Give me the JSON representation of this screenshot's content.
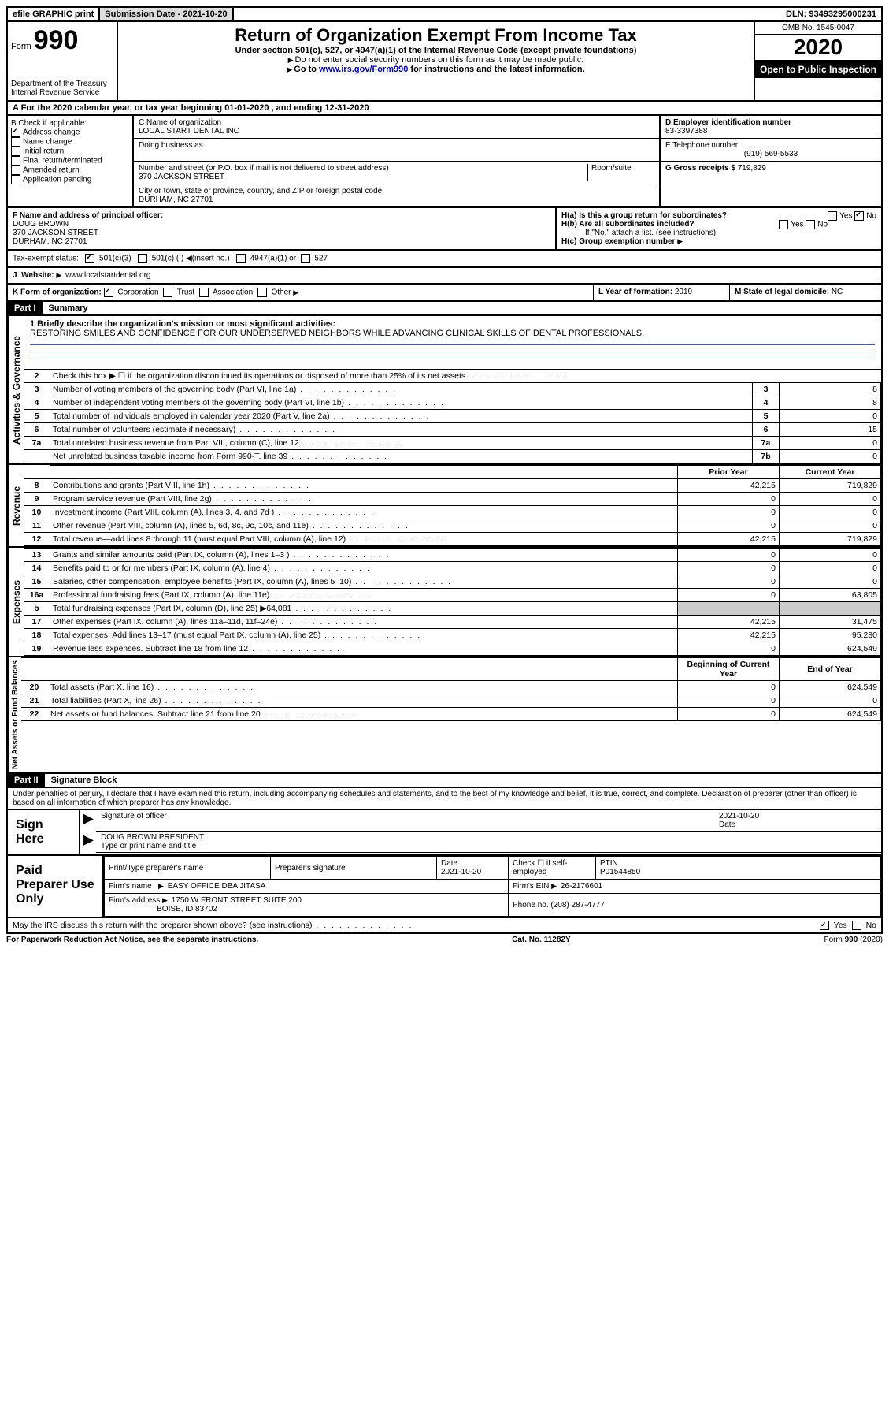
{
  "topbar": {
    "efile": "efile GRAPHIC print",
    "subdate_label": "Submission Date - ",
    "subdate": "2021-10-20",
    "dln_label": "DLN: ",
    "dln": "93493295000231"
  },
  "header": {
    "form_word": "Form",
    "form_num": "990",
    "dept": "Department of the Treasury\nInternal Revenue Service",
    "title": "Return of Organization Exempt From Income Tax",
    "sub1": "Under section 501(c), 527, or 4947(a)(1) of the Internal Revenue Code (except private foundations)",
    "sub2": "Do not enter social security numbers on this form as it may be made public.",
    "sub3_pre": "Go to ",
    "sub3_link": "www.irs.gov/Form990",
    "sub3_post": " for instructions and the latest information.",
    "omb": "OMB No. 1545-0047",
    "year": "2020",
    "open": "Open to Public Inspection"
  },
  "sectionA": "A  For the 2020 calendar year, or tax year beginning 01-01-2020    , and ending 12-31-2020",
  "boxB": {
    "label": "B Check if applicable:",
    "items": [
      "Address change",
      "Name change",
      "Initial return",
      "Final return/terminated",
      "Amended return",
      "Application pending"
    ],
    "checked": [
      true,
      false,
      false,
      false,
      false,
      false
    ]
  },
  "boxC": {
    "name_label": "C Name of organization",
    "name": "LOCAL START DENTAL INC",
    "dba_label": "Doing business as",
    "addr_label": "Number and street (or P.O. box if mail is not delivered to street address)",
    "room_label": "Room/suite",
    "addr": "370 JACKSON STREET",
    "city_label": "City or town, state or province, country, and ZIP or foreign postal code",
    "city": "DURHAM, NC  27701"
  },
  "boxD": {
    "label": "D Employer identification number",
    "value": "83-3397388"
  },
  "boxE": {
    "label": "E Telephone number",
    "value": "(919) 569-5533"
  },
  "boxG": {
    "label": "G Gross receipts $ ",
    "value": "719,829"
  },
  "boxF": {
    "label": "F  Name and address of principal officer:",
    "name": "DOUG BROWN",
    "addr1": "370 JACKSON STREET",
    "addr2": "DURHAM, NC  27701"
  },
  "boxH": {
    "a_label": "H(a)  Is this a group return for subordinates?",
    "a_yes": "Yes",
    "a_no": "No",
    "b_label": "H(b)  Are all subordinates included?",
    "b_yes": "Yes",
    "b_no": "No",
    "note": "If \"No,\" attach a list. (see instructions)",
    "c_label": "H(c)  Group exemption number"
  },
  "taxexempt": {
    "label": "Tax-exempt status:",
    "o1": "501(c)(3)",
    "o2": "501(c) (  )",
    "o2_note": "(insert no.)",
    "o3": "4947(a)(1) or",
    "o4": "527"
  },
  "boxJ": {
    "label": "J",
    "text": "Website:",
    "value": "www.localstartdental.org"
  },
  "boxK": {
    "label": "K Form of organization:",
    "o1": "Corporation",
    "o2": "Trust",
    "o3": "Association",
    "o4": "Other"
  },
  "boxL": {
    "label": "L Year of formation: ",
    "value": "2019"
  },
  "boxM": {
    "label": "M State of legal domicile: ",
    "value": "NC"
  },
  "part1": {
    "header": "Part I",
    "title": "Summary"
  },
  "mission": {
    "line1_label": "1  Briefly describe the organization's mission or most significant activities:",
    "text": "RESTORING SMILES AND CONFIDENCE FOR OUR UNDERSERVED NEIGHBORS WHILE ADVANCING CLINICAL SKILLS OF DENTAL PROFESSIONALS."
  },
  "sidebars": {
    "ag": "Activities & Governance",
    "rev": "Revenue",
    "exp": "Expenses",
    "nab": "Net Assets or Fund Balances"
  },
  "lines_ag": [
    {
      "n": "2",
      "t": "Check this box ▶ ☐  if the organization discontinued its operations or disposed of more than 25% of its net assets.",
      "box": "",
      "v": ""
    },
    {
      "n": "3",
      "t": "Number of voting members of the governing body (Part VI, line 1a)",
      "box": "3",
      "v": "8"
    },
    {
      "n": "4",
      "t": "Number of independent voting members of the governing body (Part VI, line 1b)",
      "box": "4",
      "v": "8"
    },
    {
      "n": "5",
      "t": "Total number of individuals employed in calendar year 2020 (Part V, line 2a)",
      "box": "5",
      "v": "0"
    },
    {
      "n": "6",
      "t": "Total number of volunteers (estimate if necessary)",
      "box": "6",
      "v": "15"
    },
    {
      "n": "7a",
      "t": "Total unrelated business revenue from Part VIII, column (C), line 12",
      "box": "7a",
      "v": "0"
    },
    {
      "n": "",
      "t": "Net unrelated business taxable income from Form 990-T, line 39",
      "box": "7b",
      "v": "0"
    }
  ],
  "col_headers": {
    "prior": "Prior Year",
    "current": "Current Year"
  },
  "lines_rev": [
    {
      "n": "8",
      "t": "Contributions and grants (Part VIII, line 1h)",
      "p": "42,215",
      "c": "719,829"
    },
    {
      "n": "9",
      "t": "Program service revenue (Part VIII, line 2g)",
      "p": "0",
      "c": "0"
    },
    {
      "n": "10",
      "t": "Investment income (Part VIII, column (A), lines 3, 4, and 7d )",
      "p": "0",
      "c": "0"
    },
    {
      "n": "11",
      "t": "Other revenue (Part VIII, column (A), lines 5, 6d, 8c, 9c, 10c, and 11e)",
      "p": "0",
      "c": "0"
    },
    {
      "n": "12",
      "t": "Total revenue—add lines 8 through 11 (must equal Part VIII, column (A), line 12)",
      "p": "42,215",
      "c": "719,829"
    }
  ],
  "lines_exp": [
    {
      "n": "13",
      "t": "Grants and similar amounts paid (Part IX, column (A), lines 1–3 )",
      "p": "0",
      "c": "0"
    },
    {
      "n": "14",
      "t": "Benefits paid to or for members (Part IX, column (A), line 4)",
      "p": "0",
      "c": "0"
    },
    {
      "n": "15",
      "t": "Salaries, other compensation, employee benefits (Part IX, column (A), lines 5–10)",
      "p": "0",
      "c": "0"
    },
    {
      "n": "16a",
      "t": "Professional fundraising fees (Part IX, column (A), line 11e)",
      "p": "0",
      "c": "63,805"
    },
    {
      "n": "b",
      "t": "Total fundraising expenses (Part IX, column (D), line 25) ▶64,081",
      "p": "",
      "c": "",
      "shaded": true
    },
    {
      "n": "17",
      "t": "Other expenses (Part IX, column (A), lines 11a–11d, 11f–24e)",
      "p": "42,215",
      "c": "31,475"
    },
    {
      "n": "18",
      "t": "Total expenses. Add lines 13–17 (must equal Part IX, column (A), line 25)",
      "p": "42,215",
      "c": "95,280"
    },
    {
      "n": "19",
      "t": "Revenue less expenses. Subtract line 18 from line 12",
      "p": "0",
      "c": "624,549"
    }
  ],
  "col_headers2": {
    "beg": "Beginning of Current Year",
    "end": "End of Year"
  },
  "lines_nab": [
    {
      "n": "20",
      "t": "Total assets (Part X, line 16)",
      "p": "0",
      "c": "624,549"
    },
    {
      "n": "21",
      "t": "Total liabilities (Part X, line 26)",
      "p": "0",
      "c": "0"
    },
    {
      "n": "22",
      "t": "Net assets or fund balances. Subtract line 21 from line 20",
      "p": "0",
      "c": "624,549"
    }
  ],
  "part2": {
    "header": "Part II",
    "title": "Signature Block"
  },
  "penalties": "Under penalties of perjury, I declare that I have examined this return, including accompanying schedules and statements, and to the best of my knowledge and belief, it is true, correct, and complete. Declaration of preparer (other than officer) is based on all information of which preparer has any knowledge.",
  "sign": {
    "here": "Sign Here",
    "sig_label": "Signature of officer",
    "date_label": "Date",
    "date": "2021-10-20",
    "name": "DOUG BROWN  PRESIDENT",
    "name_label": "Type or print name and title"
  },
  "paid": {
    "label": "Paid Preparer Use Only",
    "h1": "Print/Type preparer's name",
    "h2": "Preparer's signature",
    "h3": "Date",
    "h3v": "2021-10-20",
    "h4": "Check ☐ if self-employed",
    "h5": "PTIN",
    "h5v": "P01544850",
    "firm_label": "Firm's name",
    "firm": "EASY OFFICE DBA JITASA",
    "ein_label": "Firm's EIN",
    "ein": "26-2176601",
    "addr_label": "Firm's address",
    "addr1": "1750 W FRONT STREET SUITE 200",
    "addr2": "BOISE, ID  83702",
    "phone_label": "Phone no.",
    "phone": "(208) 287-4777"
  },
  "discuss": {
    "text": "May the IRS discuss this return with the preparer shown above? (see instructions)",
    "yes": "Yes",
    "no": "No"
  },
  "footer": {
    "left": "For Paperwork Reduction Act Notice, see the separate instructions.",
    "mid": "Cat. No. 11282Y",
    "right": "Form 990 (2020)"
  }
}
